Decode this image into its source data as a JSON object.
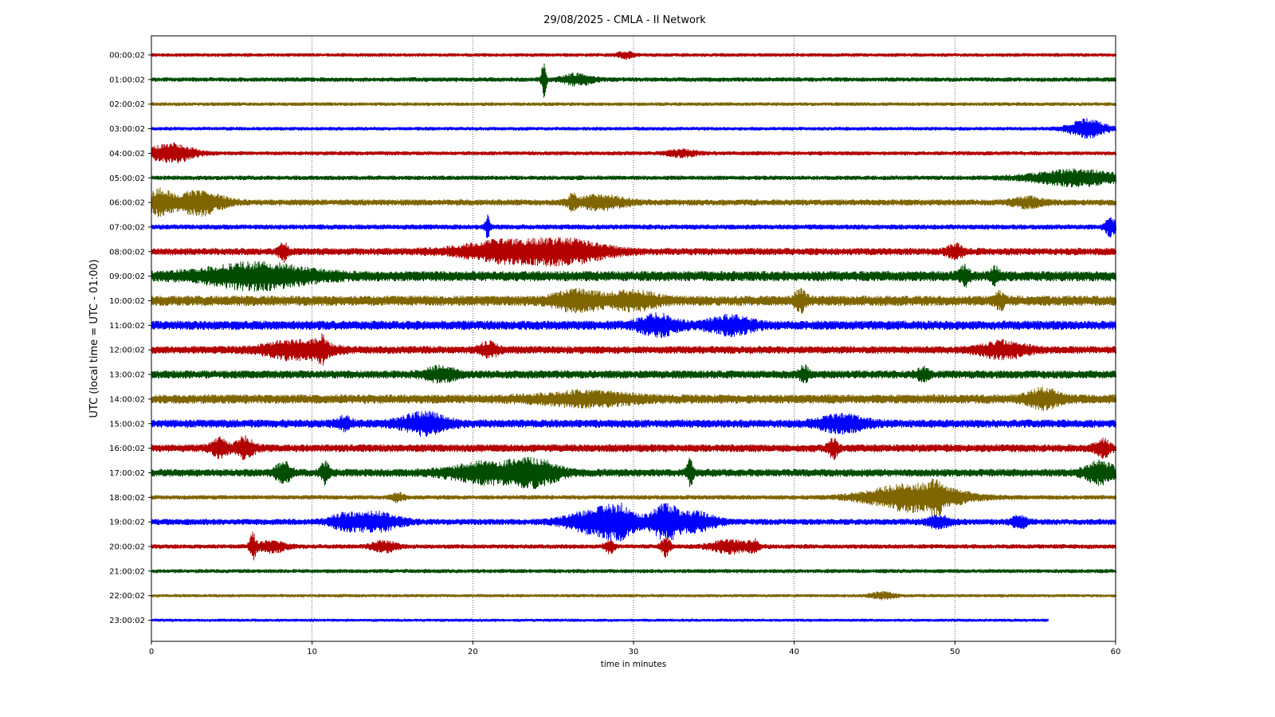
{
  "chart_data": {
    "type": "line",
    "title": "29/08/2025 - CMLA - II Network",
    "xlabel": "time in minutes",
    "ylabel": "UTC (local time = UTC - 01:00)",
    "xlim": [
      0,
      60
    ],
    "xticks": [
      0,
      10,
      20,
      30,
      40,
      50,
      60
    ],
    "grid": "vertical dotted",
    "line_colors": [
      "#b30000",
      "#004d00",
      "#806600",
      "#0000ff"
    ],
    "row_labels": [
      "00:00:02",
      "01:00:02",
      "02:00:02",
      "03:00:02",
      "04:00:02",
      "05:00:02",
      "06:00:02",
      "07:00:02",
      "08:00:02",
      "09:00:02",
      "10:00:02",
      "11:00:02",
      "12:00:02",
      "13:00:02",
      "14:00:02",
      "15:00:02",
      "16:00:02",
      "17:00:02",
      "18:00:02",
      "19:00:02",
      "20:00:02",
      "21:00:02",
      "22:00:02",
      "23:00:02"
    ],
    "traces": [
      {
        "label": "00:00:02",
        "noise": 0.18,
        "end": 60,
        "events": [
          [
            29.5,
            0.5,
            0.3
          ]
        ]
      },
      {
        "label": "01:00:02",
        "noise": 0.22,
        "end": 60,
        "events": [
          [
            24.4,
            0.15,
            1.6
          ],
          [
            26.5,
            1.0,
            0.5
          ]
        ]
      },
      {
        "label": "02:00:02",
        "noise": 0.18,
        "end": 60,
        "events": []
      },
      {
        "label": "03:00:02",
        "noise": 0.18,
        "end": 60,
        "events": [
          [
            58.2,
            1.2,
            0.85
          ]
        ]
      },
      {
        "label": "04:00:02",
        "noise": 0.2,
        "end": 60,
        "events": [
          [
            1.2,
            1.5,
            0.85
          ],
          [
            33.0,
            1.0,
            0.3
          ]
        ]
      },
      {
        "label": "05:00:02",
        "noise": 0.22,
        "end": 60,
        "events": [
          [
            57.5,
            3.0,
            0.7
          ]
        ]
      },
      {
        "label": "06:00:02",
        "noise": 0.3,
        "end": 60,
        "events": [
          [
            0.5,
            0.8,
            1.1
          ],
          [
            3.0,
            1.5,
            1.1
          ],
          [
            28.0,
            1.5,
            0.6
          ],
          [
            26.2,
            0.3,
            0.6
          ],
          [
            54.5,
            1.0,
            0.4
          ]
        ]
      },
      {
        "label": "07:00:02",
        "noise": 0.25,
        "end": 60,
        "events": [
          [
            20.9,
            0.15,
            1.0
          ],
          [
            59.7,
            0.4,
            0.8
          ]
        ]
      },
      {
        "label": "08:00:02",
        "noise": 0.35,
        "end": 60,
        "events": [
          [
            22.0,
            3.0,
            0.9
          ],
          [
            26.0,
            2.5,
            0.9
          ],
          [
            8.2,
            0.3,
            0.8
          ],
          [
            50.0,
            0.5,
            0.6
          ]
        ]
      },
      {
        "label": "09:00:02",
        "noise": 0.5,
        "end": 60,
        "events": [
          [
            6.5,
            3.5,
            1.0
          ],
          [
            50.6,
            0.3,
            0.8
          ],
          [
            52.5,
            0.3,
            0.6
          ]
        ]
      },
      {
        "label": "10:00:02",
        "noise": 0.5,
        "end": 60,
        "events": [
          [
            26.5,
            1.5,
            0.8
          ],
          [
            30.0,
            1.5,
            0.7
          ],
          [
            40.4,
            0.4,
            0.8
          ],
          [
            52.8,
            0.3,
            0.6
          ]
        ]
      },
      {
        "label": "11:00:02",
        "noise": 0.45,
        "end": 60,
        "events": [
          [
            31.5,
            1.2,
            0.85
          ],
          [
            36.0,
            1.5,
            0.7
          ]
        ]
      },
      {
        "label": "12:00:02",
        "noise": 0.38,
        "end": 60,
        "events": [
          [
            9.0,
            2.0,
            0.8
          ],
          [
            10.6,
            0.4,
            0.8
          ],
          [
            21.0,
            0.6,
            0.6
          ],
          [
            53.0,
            1.5,
            0.7
          ]
        ]
      },
      {
        "label": "13:00:02",
        "noise": 0.4,
        "end": 60,
        "events": [
          [
            18.0,
            1.0,
            0.6
          ],
          [
            40.6,
            0.3,
            0.7
          ],
          [
            48.0,
            0.4,
            0.5
          ]
        ]
      },
      {
        "label": "14:00:02",
        "noise": 0.45,
        "end": 60,
        "events": [
          [
            27.0,
            3.0,
            0.5
          ],
          [
            55.5,
            1.0,
            0.8
          ]
        ]
      },
      {
        "label": "15:00:02",
        "noise": 0.4,
        "end": 60,
        "events": [
          [
            17.0,
            1.5,
            0.9
          ],
          [
            43.0,
            1.5,
            0.7
          ],
          [
            12.0,
            0.5,
            0.5
          ]
        ]
      },
      {
        "label": "16:00:02",
        "noise": 0.38,
        "end": 60,
        "events": [
          [
            4.2,
            0.5,
            0.8
          ],
          [
            5.8,
            0.6,
            0.9
          ],
          [
            42.4,
            0.3,
            0.8
          ],
          [
            59.2,
            0.5,
            0.7
          ]
        ]
      },
      {
        "label": "17:00:02",
        "noise": 0.38,
        "end": 60,
        "events": [
          [
            8.2,
            0.5,
            0.9
          ],
          [
            10.8,
            0.3,
            0.9
          ],
          [
            21.0,
            2.5,
            0.9
          ],
          [
            23.9,
            1.5,
            1.0
          ],
          [
            33.5,
            0.2,
            1.1
          ],
          [
            59.0,
            1.0,
            0.9
          ]
        ]
      },
      {
        "label": "18:00:02",
        "noise": 0.22,
        "end": 60,
        "events": [
          [
            47.5,
            3.0,
            1.3
          ],
          [
            48.8,
            0.3,
            1.3
          ],
          [
            15.3,
            0.4,
            0.4
          ]
        ]
      },
      {
        "label": "19:00:02",
        "noise": 0.3,
        "end": 60,
        "events": [
          [
            29.0,
            1.2,
            1.6
          ],
          [
            32.0,
            1.0,
            1.6
          ],
          [
            27.0,
            1.5,
            0.8
          ],
          [
            34.0,
            1.2,
            0.8
          ],
          [
            14.0,
            1.5,
            0.8
          ],
          [
            12.0,
            1.0,
            0.6
          ],
          [
            49.0,
            0.8,
            0.5
          ],
          [
            54.0,
            0.5,
            0.5
          ]
        ]
      },
      {
        "label": "20:00:02",
        "noise": 0.22,
        "end": 60,
        "events": [
          [
            6.3,
            0.2,
            1.1
          ],
          [
            7.5,
            1.0,
            0.5
          ],
          [
            14.5,
            0.8,
            0.5
          ],
          [
            28.5,
            0.3,
            0.6
          ],
          [
            32.0,
            0.3,
            0.9
          ],
          [
            36.0,
            1.2,
            0.6
          ],
          [
            37.5,
            0.3,
            0.6
          ]
        ]
      },
      {
        "label": "21:00:02",
        "noise": 0.2,
        "end": 60,
        "events": []
      },
      {
        "label": "22:00:02",
        "noise": 0.16,
        "end": 60,
        "events": [
          [
            45.5,
            0.8,
            0.3
          ]
        ]
      },
      {
        "label": "23:00:02",
        "noise": 0.15,
        "end": 55.8,
        "events": []
      }
    ]
  }
}
